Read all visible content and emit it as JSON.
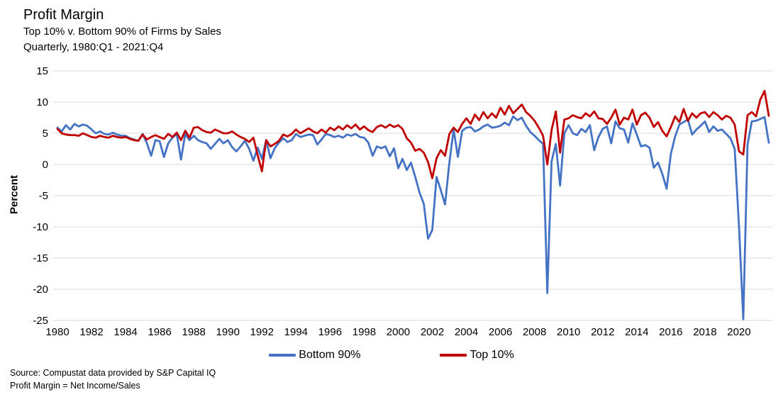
{
  "header": {
    "title": "Profit Margin",
    "subtitle1": "Top 10% v. Bottom 90% of Firms by Sales",
    "subtitle2": "Quarterly, 1980:Q1 - 2021:Q4"
  },
  "colors": {
    "bottom90": "#4472C4",
    "top10": "#C00000",
    "gridline": "#D9D9D9",
    "axis_text": "#000000"
  },
  "legend": {
    "items": [
      {
        "label": "Bottom 90%",
        "color": "#4472C4"
      },
      {
        "label": "Top 10%",
        "color": "#C00000"
      }
    ]
  },
  "footer": {
    "source": "Source: Compustat data provided by S&P Capital IQ",
    "formula": "Profit Margin = Net Income/Sales"
  },
  "chart_data": {
    "type": "line",
    "title": "Profit Margin",
    "subtitle": [
      "Top 10% v. Bottom 90% of Firms by Sales",
      "Quarterly, 1980:Q1 - 2021:Q4"
    ],
    "xlabel": "",
    "ylabel": "Percent",
    "ylim": [
      -25,
      15
    ],
    "ytick_step": 5,
    "xlim": [
      1979.75,
      2022.0
    ],
    "xticks": [
      1980,
      1982,
      1984,
      1986,
      1988,
      1990,
      1992,
      1994,
      1996,
      1998,
      2000,
      2002,
      2004,
      2006,
      2008,
      2010,
      2012,
      2014,
      2016,
      2018,
      2020
    ],
    "grid": "horizontal",
    "legend_position": "bottom",
    "x_start": 1980.0,
    "x_step": 0.25,
    "x_unit": "quarter",
    "series": [
      {
        "name": "Bottom 90%",
        "color": "#4472C4",
        "values": [
          5.9,
          5.3,
          6.3,
          5.6,
          6.5,
          6.1,
          6.4,
          6.2,
          5.6,
          5.0,
          5.3,
          4.9,
          4.8,
          5.1,
          4.8,
          4.6,
          4.6,
          4.2,
          4.0,
          3.8,
          4.9,
          3.4,
          1.4,
          3.9,
          3.7,
          1.2,
          3.4,
          4.3,
          4.9,
          0.8,
          4.9,
          3.9,
          4.6,
          3.9,
          3.6,
          3.4,
          2.5,
          3.3,
          4.1,
          3.4,
          3.9,
          2.8,
          2.1,
          2.9,
          3.8,
          2.5,
          0.6,
          2.7,
          0.9,
          3.9,
          1.0,
          2.6,
          3.5,
          4.2,
          3.6,
          3.9,
          4.9,
          4.4,
          4.6,
          4.8,
          4.7,
          3.2,
          4.0,
          4.9,
          4.7,
          4.4,
          4.6,
          4.3,
          4.8,
          4.6,
          4.9,
          4.4,
          4.3,
          3.5,
          1.4,
          2.9,
          2.6,
          2.9,
          1.3,
          2.6,
          -0.6,
          0.9,
          -0.9,
          0.3,
          -2.0,
          -4.5,
          -6.3,
          -11.9,
          -10.5,
          -2.0,
          -4.1,
          -6.4,
          0.3,
          5.6,
          1.2,
          5.4,
          5.9,
          6.0,
          5.3,
          5.6,
          6.1,
          6.4,
          5.9,
          6.0,
          6.2,
          6.7,
          6.3,
          7.7,
          7.1,
          7.5,
          6.2,
          5.2,
          4.6,
          3.9,
          3.3,
          -20.6,
          0.5,
          3.3,
          -3.4,
          5.0,
          6.3,
          5.0,
          4.7,
          5.7,
          5.2,
          6.3,
          2.3,
          4.4,
          5.7,
          6.1,
          3.4,
          6.9,
          5.8,
          5.6,
          3.5,
          6.6,
          4.8,
          2.9,
          3.1,
          2.7,
          -0.5,
          0.3,
          -1.5,
          -3.9,
          1.7,
          4.5,
          6.4,
          6.8,
          7.2,
          4.8,
          5.6,
          6.2,
          6.9,
          5.2,
          6.1,
          5.4,
          5.6,
          4.9,
          4.2,
          2.5,
          -10.0,
          -24.8,
          3.2,
          6.9,
          7.0,
          7.3,
          7.6,
          3.5
        ]
      },
      {
        "name": "Top 10%",
        "color": "#C00000",
        "values": [
          5.7,
          5.0,
          4.8,
          4.7,
          4.7,
          4.6,
          5.0,
          4.7,
          4.4,
          4.3,
          4.6,
          4.4,
          4.3,
          4.6,
          4.4,
          4.3,
          4.4,
          4.1,
          3.9,
          3.8,
          4.8,
          4.0,
          4.4,
          4.7,
          4.4,
          4.1,
          4.9,
          4.4,
          5.1,
          3.9,
          5.4,
          4.3,
          5.9,
          6.0,
          5.5,
          5.2,
          5.1,
          5.6,
          5.3,
          5.0,
          5.0,
          5.3,
          4.8,
          4.4,
          4.1,
          3.6,
          4.3,
          1.5,
          -1.1,
          3.9,
          2.9,
          3.3,
          3.8,
          4.8,
          4.5,
          4.9,
          5.6,
          5.0,
          5.4,
          5.8,
          5.3,
          5.0,
          5.6,
          5.1,
          5.9,
          5.5,
          6.1,
          5.6,
          6.3,
          5.8,
          6.4,
          5.6,
          6.1,
          5.5,
          5.2,
          6.0,
          6.3,
          5.9,
          6.4,
          6.0,
          6.3,
          5.7,
          4.2,
          3.5,
          2.2,
          2.5,
          1.9,
          0.4,
          -2.2,
          1.0,
          2.3,
          1.4,
          4.9,
          5.9,
          5.2,
          6.5,
          7.4,
          6.5,
          8.0,
          7.1,
          8.4,
          7.4,
          8.2,
          7.5,
          9.1,
          8.0,
          9.4,
          8.2,
          8.9,
          9.6,
          8.4,
          7.8,
          7.0,
          5.9,
          4.6,
          0.0,
          5.5,
          8.5,
          1.9,
          7.2,
          7.4,
          7.9,
          7.6,
          7.4,
          8.2,
          7.7,
          8.5,
          7.4,
          7.3,
          6.5,
          7.5,
          8.8,
          6.4,
          7.5,
          7.2,
          8.8,
          6.4,
          7.9,
          8.3,
          7.5,
          6.0,
          6.8,
          5.4,
          4.5,
          6.0,
          7.7,
          6.8,
          8.9,
          7.0,
          8.2,
          7.5,
          8.2,
          8.4,
          7.6,
          8.4,
          7.9,
          7.2,
          7.8,
          7.5,
          6.4,
          2.1,
          1.6,
          7.9,
          8.4,
          7.7,
          10.4,
          11.8,
          7.8
        ]
      }
    ]
  }
}
